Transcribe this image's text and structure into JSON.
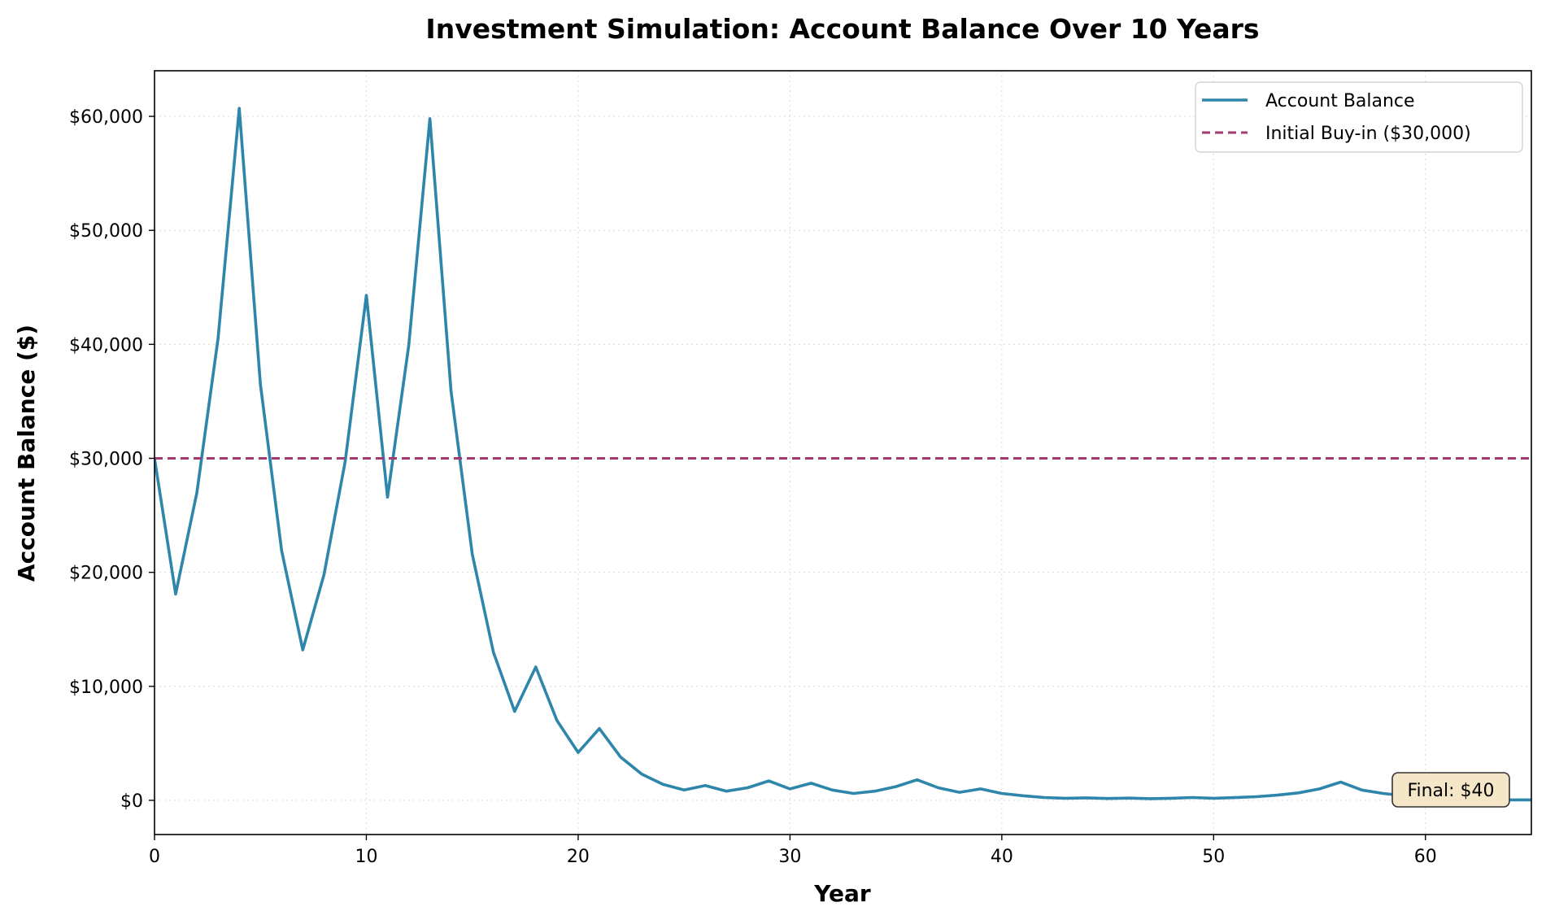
{
  "chart_data": {
    "type": "line",
    "title": "Investment Simulation: Account Balance Over 10 Years",
    "xlabel": "Year",
    "ylabel": "Account Balance ($)",
    "xlim": [
      0,
      65
    ],
    "ylim": [
      -3000,
      64000
    ],
    "x_ticks": [
      0,
      10,
      20,
      30,
      40,
      50,
      60
    ],
    "x_tick_labels": [
      "0",
      "10",
      "20",
      "30",
      "40",
      "50",
      "60"
    ],
    "y_ticks": [
      0,
      10000,
      20000,
      30000,
      40000,
      50000,
      60000
    ],
    "y_tick_labels": [
      "$0",
      "$10,000",
      "$20,000",
      "$30,000",
      "$40,000",
      "$50,000",
      "$60,000"
    ],
    "grid": true,
    "legend_position": "upper right",
    "series": [
      {
        "name": "Account Balance",
        "color": "#2e86ab",
        "style": "solid",
        "x": [
          0,
          1,
          2,
          3,
          4,
          5,
          6,
          7,
          8,
          9,
          10,
          11,
          12,
          13,
          14,
          15,
          16,
          17,
          18,
          19,
          20,
          21,
          22,
          23,
          24,
          25,
          26,
          27,
          28,
          29,
          30,
          31,
          32,
          33,
          34,
          35,
          36,
          37,
          38,
          39,
          40,
          41,
          42,
          43,
          44,
          45,
          46,
          47,
          48,
          49,
          50,
          51,
          52,
          53,
          54,
          55,
          56,
          57,
          58,
          59,
          60,
          61,
          62,
          63,
          64,
          65
        ],
        "y": [
          30000,
          18100,
          27000,
          40500,
          60700,
          36500,
          21900,
          13200,
          19800,
          29700,
          44300,
          26600,
          39900,
          59800,
          35900,
          21600,
          13000,
          7800,
          11700,
          7000,
          4200,
          6300,
          3800,
          2300,
          1400,
          900,
          1300,
          800,
          1100,
          1700,
          1000,
          1500,
          900,
          600,
          800,
          1200,
          1800,
          1100,
          700,
          1000,
          600,
          400,
          250,
          180,
          220,
          160,
          200,
          150,
          180,
          250,
          180,
          240,
          320,
          450,
          650,
          1000,
          1600,
          900,
          600,
          400,
          250,
          150,
          100,
          60,
          40,
          40
        ]
      },
      {
        "name": "Initial Buy-in ($30,000)",
        "color": "#a23b72",
        "style": "dashed",
        "constant": 30000
      }
    ],
    "annotation": {
      "text": "Final: $40",
      "x": 62,
      "y": 800,
      "bg_color": "#f5e6c8"
    }
  }
}
